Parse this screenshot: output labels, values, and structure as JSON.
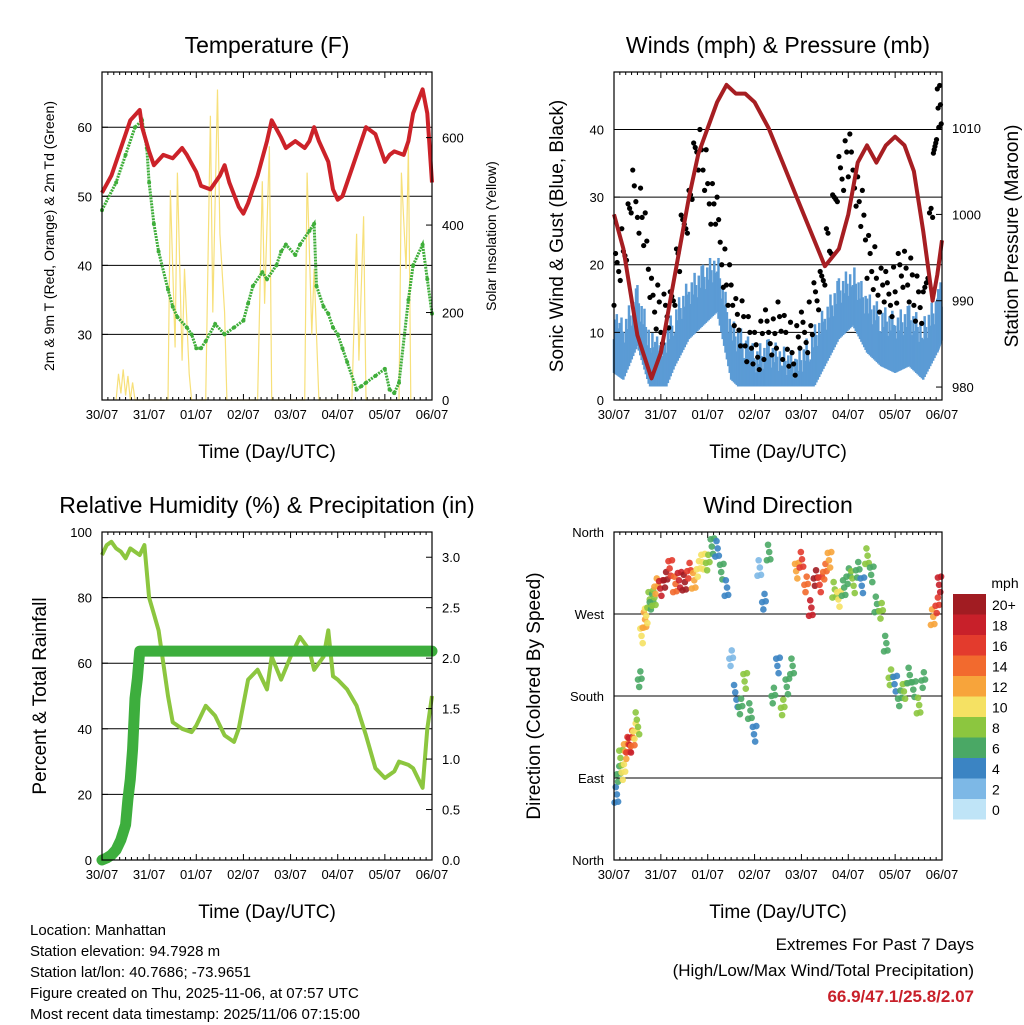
{
  "chart_data": [
    {
      "id": "temp",
      "type": "line",
      "title": "Temperature (F)",
      "xlabel": "Time (Day/UTC)",
      "ylabel": "2m & 9m T (Red, Orange) & 2m Td (Green)",
      "y2label": "Solar Insolation (Yellow)",
      "x_ticklabels": [
        "30/07",
        "31/07",
        "01/07",
        "02/07",
        "03/07",
        "04/07",
        "05/07",
        "06/07"
      ],
      "xlim": [
        0,
        7
      ],
      "ylim": [
        20.5,
        68
      ],
      "y_ticks": [
        30,
        40,
        50,
        60
      ],
      "y2lim": [
        0,
        750
      ],
      "y2_ticks": [
        0,
        200,
        400,
        600
      ],
      "grid_y": [
        30,
        40,
        50,
        60
      ],
      "series": [
        {
          "name": "2m T",
          "color": "#cc2229",
          "axis": "left",
          "x": [
            0,
            0.2,
            0.35,
            0.5,
            0.6,
            0.8,
            0.85,
            1.0,
            1.1,
            1.3,
            1.5,
            1.7,
            1.8,
            2.0,
            2.1,
            2.3,
            2.5,
            2.6,
            2.7,
            2.9,
            3.0,
            3.1,
            3.3,
            3.5,
            3.6,
            3.8,
            3.9,
            4.0,
            4.1,
            4.3,
            4.4,
            4.5,
            4.6,
            4.8,
            4.9,
            5.0,
            5.1,
            5.3,
            5.5,
            5.6,
            5.8,
            6.0,
            6.1,
            6.2,
            6.4,
            6.5,
            6.6,
            6.8,
            6.9,
            7.0
          ],
          "values": [
            50.5,
            53,
            56,
            59,
            61,
            62.5,
            60,
            56.5,
            54.5,
            56,
            55.5,
            57,
            56,
            53.5,
            51.5,
            51,
            53,
            54.5,
            52,
            48.5,
            47.5,
            49,
            53,
            58,
            61,
            58.5,
            57,
            57.5,
            58,
            57,
            58,
            60,
            58,
            55,
            51,
            49.5,
            50,
            54,
            58,
            60,
            59,
            55,
            56,
            56.5,
            56,
            58,
            62,
            65.5,
            62,
            52
          ]
        },
        {
          "name": "Dewpoint",
          "color": "#3fae3a",
          "axis": "left",
          "x": [
            0,
            0.3,
            0.5,
            0.7,
            0.85,
            0.95,
            1.0,
            1.1,
            1.2,
            1.4,
            1.5,
            1.6,
            1.8,
            1.9,
            2.0,
            2.1,
            2.2,
            2.4,
            2.6,
            2.8,
            3.0,
            3.1,
            3.2,
            3.4,
            3.5,
            3.7,
            3.8,
            3.9,
            4.1,
            4.2,
            4.4,
            4.5,
            4.55,
            4.7,
            4.8,
            4.9,
            5.0,
            5.1,
            5.2,
            5.4,
            5.5,
            5.6,
            5.8,
            6.0,
            6.1,
            6.2,
            6.3,
            6.5,
            6.6,
            6.8,
            6.9,
            7.0
          ],
          "values": [
            48,
            52,
            56,
            60,
            61,
            57,
            52,
            46,
            42,
            36.5,
            34,
            32.5,
            31,
            30,
            28,
            28,
            29,
            31.5,
            30,
            31,
            32,
            34.5,
            37,
            39,
            38,
            40,
            42,
            43,
            41.5,
            43,
            45,
            46,
            37,
            34,
            33,
            31,
            30,
            28,
            26,
            22,
            22.5,
            23,
            24,
            25,
            22,
            21.5,
            23,
            35,
            40,
            43,
            38,
            33
          ]
        },
        {
          "name": "Solar",
          "color": "#f7e07a",
          "axis": "right",
          "fill": false,
          "x": [
            0.3,
            0.35,
            0.4,
            0.45,
            0.5,
            0.55,
            0.6,
            0.65,
            0.7,
            1.4,
            1.45,
            1.55,
            1.6,
            1.7,
            1.75,
            1.85,
            1.9,
            2.2,
            2.3,
            2.35,
            2.45,
            2.5,
            2.6,
            2.65,
            3.3,
            3.4,
            3.45,
            3.55,
            3.6,
            4.3,
            4.35,
            4.45,
            4.5,
            4.6,
            5.3,
            5.4,
            5.45,
            5.55,
            5.6,
            6.3,
            6.35,
            6.45,
            6.5,
            6.55
          ],
          "values": [
            0,
            60,
            15,
            70,
            10,
            55,
            0,
            40,
            0,
            0,
            480,
            120,
            520,
            90,
            300,
            60,
            0,
            0,
            650,
            200,
            710,
            380,
            200,
            0,
            0,
            500,
            220,
            580,
            0,
            0,
            520,
            150,
            300,
            0,
            0,
            380,
            90,
            420,
            0,
            0,
            520,
            300,
            580,
            0
          ]
        }
      ]
    },
    {
      "id": "winds",
      "type": "scatter",
      "title": "Winds (mph) & Pressure (mb)",
      "xlabel": "Time (Day/UTC)",
      "ylabel": "Sonic Wind & Gust (Blue, Black)",
      "y2label": "Station Pressure (Maroon)",
      "x_ticklabels": [
        "30/07",
        "31/07",
        "01/07",
        "02/07",
        "03/07",
        "04/07",
        "05/07",
        "06/07"
      ],
      "xlim": [
        0,
        7
      ],
      "ylim": [
        0,
        48.5
      ],
      "y_ticks": [
        0,
        10,
        20,
        30,
        40
      ],
      "y2lim": [
        978.5,
        1016.5
      ],
      "y2_ticks": [
        980,
        990,
        1000,
        1010
      ],
      "grid_y": [
        10,
        20,
        30,
        40
      ],
      "sustained": {
        "color": "#5b9bd5",
        "x": [
          0,
          0.2,
          0.5,
          0.8,
          1.0,
          1.3,
          1.6,
          1.9,
          2.2,
          2.5,
          2.8,
          3.0,
          3.3,
          3.6,
          3.9,
          4.2,
          4.5,
          4.8,
          5.1,
          5.4,
          5.7,
          6.0,
          6.3,
          6.6,
          6.9,
          7.0
        ],
        "values": [
          9,
          8,
          13,
          6,
          5,
          10,
          14,
          16,
          18,
          8,
          6,
          4,
          5,
          4,
          3,
          6,
          10,
          14,
          16,
          12,
          10,
          9,
          10,
          8,
          12,
          14
        ]
      },
      "gusts": {
        "color": "#000000",
        "x": [
          0,
          0.2,
          0.4,
          0.6,
          0.8,
          1.0,
          1.2,
          1.4,
          1.6,
          1.8,
          2.0,
          2.2,
          2.4,
          2.6,
          2.8,
          3.0,
          3.2,
          3.4,
          3.6,
          3.8,
          4.0,
          4.2,
          4.4,
          4.6,
          4.8,
          5.0,
          5.2,
          5.4,
          5.6,
          5.8,
          6.0,
          6.2,
          6.4,
          6.6,
          6.8,
          6.9,
          7.0
        ],
        "values": [
          18,
          22,
          30,
          28,
          15,
          12,
          14,
          22,
          30,
          38,
          32,
          26,
          18,
          12,
          10,
          8,
          9,
          11,
          10,
          7,
          9,
          12,
          16,
          24,
          34,
          36,
          32,
          22,
          18,
          15,
          17,
          19,
          16,
          14,
          30,
          45,
          40
        ]
      },
      "pressure": {
        "color": "#a61e22",
        "x": [
          0,
          0.2,
          0.5,
          0.8,
          1.0,
          1.2,
          1.4,
          1.6,
          1.8,
          2.0,
          2.2,
          2.4,
          2.6,
          2.8,
          3.0,
          3.3,
          3.6,
          3.9,
          4.2,
          4.5,
          4.8,
          5.0,
          5.2,
          5.4,
          5.6,
          5.8,
          6.0,
          6.2,
          6.4,
          6.6,
          6.8,
          6.9,
          7.0
        ],
        "values": [
          1000,
          996,
          986,
          981,
          984,
          990,
          996,
          1002,
          1007,
          1010,
          1013,
          1015,
          1014,
          1014,
          1013,
          1010,
          1006,
          1002,
          998,
          994,
          996,
          1000,
          1006,
          1008,
          1006,
          1008,
          1009,
          1008,
          1005,
          998,
          990,
          993,
          997
        ]
      }
    },
    {
      "id": "rh",
      "type": "line",
      "title": "Relative Humidity (%) & Precipitation (in)",
      "xlabel": "Time (Day/UTC)",
      "ylabel": "Percent & Total Rainfall",
      "x_ticklabels": [
        "30/07",
        "31/07",
        "01/07",
        "02/07",
        "03/07",
        "04/07",
        "05/07",
        "06/07"
      ],
      "xlim": [
        0,
        7
      ],
      "ylim": [
        0,
        100
      ],
      "y_ticks": [
        0,
        20,
        40,
        60,
        80,
        100
      ],
      "y2lim": [
        0,
        3.25
      ],
      "y2_ticks": [
        "0.0",
        "0.5",
        "1.0",
        "1.5",
        "2.0",
        "2.5",
        "3.0"
      ],
      "grid_y": [
        20,
        40,
        60,
        80
      ],
      "series": [
        {
          "name": "RH",
          "color": "#8cc63f",
          "x": [
            0,
            0.1,
            0.2,
            0.3,
            0.4,
            0.5,
            0.6,
            0.7,
            0.8,
            0.9,
            1.0,
            1.1,
            1.2,
            1.3,
            1.4,
            1.5,
            1.7,
            1.9,
            2.0,
            2.2,
            2.4,
            2.6,
            2.8,
            2.9,
            3.1,
            3.3,
            3.5,
            3.6,
            3.8,
            4.0,
            4.2,
            4.4,
            4.5,
            4.7,
            4.8,
            4.9,
            5.0,
            5.2,
            5.4,
            5.6,
            5.8,
            6.0,
            6.2,
            6.3,
            6.5,
            6.6,
            6.8,
            6.9,
            7.0
          ],
          "values": [
            93,
            96,
            97,
            95,
            94,
            92,
            95,
            94,
            93,
            96,
            80,
            75,
            70,
            60,
            50,
            42,
            40,
            39,
            41,
            47,
            44,
            38,
            36,
            40,
            55,
            58,
            52,
            62,
            55,
            62,
            68,
            64,
            58,
            62,
            70,
            56,
            55,
            52,
            47,
            38,
            28,
            25,
            27,
            30,
            29,
            28,
            22,
            40,
            50
          ]
        },
        {
          "name": "Precip",
          "color": "#3dae3d",
          "axis": "right",
          "x": [
            0,
            0.1,
            0.2,
            0.3,
            0.4,
            0.5,
            0.55,
            0.6,
            0.65,
            0.7,
            0.75,
            0.8,
            7.0
          ],
          "values": [
            0,
            0.02,
            0.05,
            0.1,
            0.2,
            0.35,
            0.6,
            0.8,
            1.1,
            1.6,
            1.8,
            2.07,
            2.07
          ]
        }
      ]
    },
    {
      "id": "wdir",
      "type": "scatter",
      "title": "Wind Direction",
      "xlabel": "Time (Day/UTC)",
      "ylabel": "Direction (Colored By Speed)",
      "x_ticklabels": [
        "30/07",
        "31/07",
        "01/07",
        "02/07",
        "03/07",
        "04/07",
        "05/07",
        "06/07"
      ],
      "xlim": [
        0,
        7
      ],
      "ylim": [
        0,
        360
      ],
      "y_ticklabels": [
        "North",
        "East",
        "South",
        "West",
        "North"
      ],
      "y_ticks": [
        0,
        90,
        180,
        270,
        360
      ],
      "grid_y": [
        90,
        180,
        270
      ],
      "legend_title": "mph",
      "legend_labels": [
        "20+",
        "18",
        "16",
        "14",
        "12",
        "10",
        "8",
        "6",
        "4",
        "2",
        "0"
      ],
      "legend_colors": [
        "#a11c22",
        "#c8202a",
        "#e33b2d",
        "#f26a2e",
        "#f7a43b",
        "#f5e163",
        "#8cc63f",
        "#4aa865",
        "#3b84c3",
        "#7db8e6",
        "#bfe4f7"
      ],
      "points": {
        "t": [
          0.05,
          0.1,
          0.15,
          0.2,
          0.25,
          0.3,
          0.35,
          0.4,
          0.45,
          0.5,
          0.55,
          0.6,
          0.65,
          0.7,
          0.75,
          0.8,
          0.85,
          0.9,
          1.0,
          1.1,
          1.2,
          1.3,
          1.4,
          1.5,
          1.6,
          1.7,
          1.8,
          1.9,
          2.0,
          2.1,
          2.2,
          2.3,
          2.4,
          2.5,
          2.6,
          2.7,
          2.8,
          2.9,
          3.0,
          3.1,
          3.2,
          3.3,
          3.4,
          3.5,
          3.6,
          3.7,
          3.8,
          3.9,
          4.0,
          4.1,
          4.2,
          4.3,
          4.4,
          4.5,
          4.6,
          4.7,
          4.8,
          4.9,
          5.0,
          5.1,
          5.2,
          5.3,
          5.4,
          5.5,
          5.6,
          5.7,
          5.8,
          5.9,
          6.0,
          6.1,
          6.2,
          6.3,
          6.4,
          6.5,
          6.6,
          6.8,
          6.9,
          6.95
        ],
        "dir": [
          75,
          95,
          110,
          100,
          120,
          125,
          130,
          135,
          140,
          150,
          200,
          245,
          260,
          270,
          285,
          280,
          290,
          300,
          295,
          310,
          320,
          300,
          310,
          305,
          315,
          310,
          320,
          325,
          330,
          345,
          340,
          320,
          300,
          220,
          180,
          170,
          195,
          160,
          140,
          320,
          280,
          340,
          180,
          210,
          170,
          190,
          210,
          320,
          330,
          300,
          280,
          310,
          300,
          320,
          330,
          295,
          290,
          300,
          310,
          305,
          320,
          300,
          330,
          315,
          280,
          270,
          240,
          200,
          190,
          180,
          185,
          200,
          190,
          170,
          195,
          270,
          280,
          300
        ],
        "speed": [
          4,
          6,
          8,
          10,
          12,
          16,
          18,
          14,
          10,
          8,
          6,
          10,
          12,
          10,
          8,
          6,
          8,
          12,
          18,
          20,
          16,
          14,
          18,
          20,
          16,
          12,
          10,
          10,
          8,
          6,
          4,
          6,
          4,
          2,
          4,
          6,
          8,
          6,
          4,
          2,
          4,
          6,
          6,
          4,
          8,
          6,
          6,
          12,
          16,
          14,
          18,
          20,
          16,
          14,
          12,
          8,
          10,
          6,
          6,
          8,
          6,
          4,
          8,
          6,
          6,
          8,
          6,
          8,
          4,
          6,
          8,
          6,
          6,
          8,
          6,
          12,
          16,
          18
        ]
      }
    }
  ],
  "info": {
    "location": "Location: Manhattan",
    "elevation": "Station elevation: 94.7928 m",
    "latlon": "Station lat/lon: 40.7686; -73.9651",
    "created": "Figure created on Thu, 2025-11-06, at 07:57 UTC",
    "timestamp": "Most recent data timestamp: 2025/11/06 07:15:00"
  },
  "extremes": {
    "title": "Extremes For Past 7 Days",
    "subtitle": "(High/Low/Max Wind/Total Precipitation)",
    "values": "66.9/47.1/25.8/2.07"
  }
}
